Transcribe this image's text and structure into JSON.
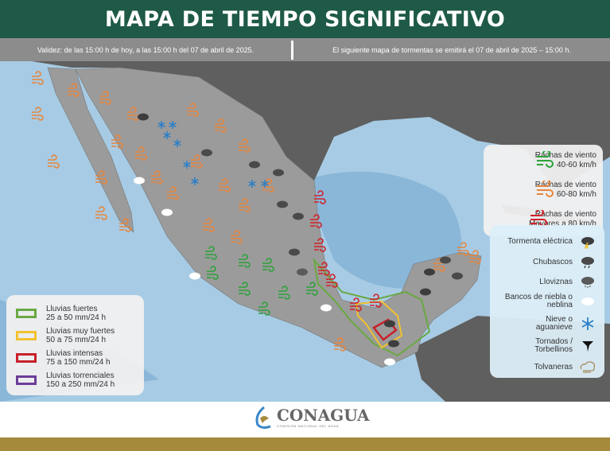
{
  "header": {
    "title": "MAPA DE TIEMPO SIGNIFICATIVO"
  },
  "subheader": {
    "validity": "Validez:  de las 15:00  h de hoy, a las 15:00  h del 07 de abril de 2025.",
    "next_map": "El siguiente  mapa de tormentas  se emitirá  el 07 de abril de 2025 – 15:00  h."
  },
  "wind_legend": [
    {
      "line1": "Rachas de viento",
      "line2": "40-60 km/h",
      "color": "#2aa23a"
    },
    {
      "line1": "Rachas de viento",
      "line2": "60-80 km/h",
      "color": "#e8843a"
    },
    {
      "line1": "Rachas de viento",
      "line2": "Mayores a 80 km/h",
      "color": "#d0222a"
    }
  ],
  "phenomena_legend": [
    {
      "label": "Tormenta eléctrica",
      "icon": "thunderstorm-icon"
    },
    {
      "label": "Chubascos",
      "icon": "showers-icon"
    },
    {
      "label": "Lloviznas",
      "icon": "drizzle-icon"
    },
    {
      "label": "Bancos de niebla o neblina",
      "icon": "fog-icon"
    },
    {
      "label": "Nieve o aguanieve",
      "icon": "snowflake-icon"
    },
    {
      "label": "Tornados / Torbellinos",
      "icon": "tornado-icon"
    },
    {
      "label": "Tolvaneras",
      "icon": "dust-storm-icon"
    }
  ],
  "rain_legend": [
    {
      "line1": "Lluvias fuertes",
      "line2": "25 a 50 mm/24 h",
      "color": "#6aa842"
    },
    {
      "line1": "Lluvias muy fuertes",
      "line2": "50 a 75 mm/24 h",
      "color": "#f2c12e"
    },
    {
      "line1": "Lluvias intensas",
      "line2": "75 a 150 mm/24 h",
      "color": "#c8202a"
    },
    {
      "line1": "Lluvias torrenciales",
      "line2": "150 a 250 mm/24 h",
      "color": "#6b3d98"
    }
  ],
  "footer": {
    "logo_name": "CONAGUA",
    "logo_sub": "COMISIÓN NACIONAL DEL AGUA"
  },
  "colors": {
    "header": "#1e5a47",
    "subheader": "#8c8c8c",
    "gold": "#a58a3c",
    "ocean": "#a7cbe4",
    "land": "#9b9b9b"
  }
}
